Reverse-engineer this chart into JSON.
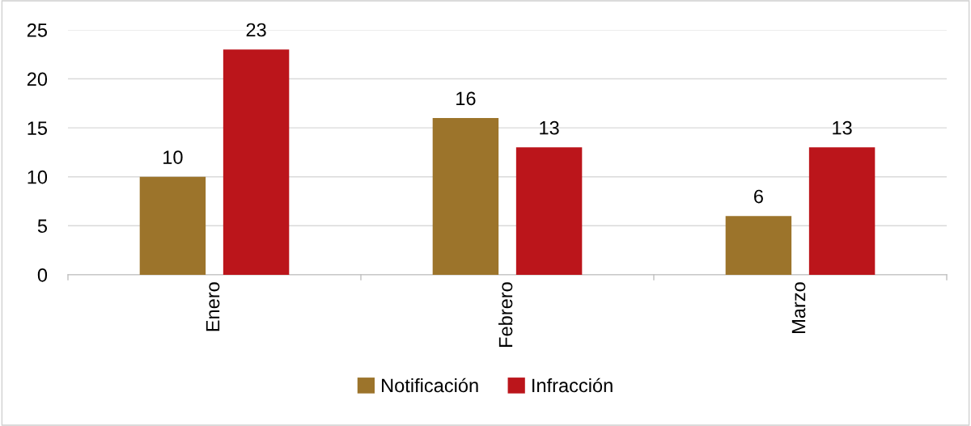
{
  "chart_data": {
    "type": "bar",
    "categories": [
      "Enero",
      "Febrero",
      "Marzo"
    ],
    "series": [
      {
        "name": "Notificación",
        "color": "#9c742b",
        "values": [
          10,
          16,
          6
        ]
      },
      {
        "name": "Infracción",
        "color": "#bb151b",
        "values": [
          23,
          13,
          13
        ]
      }
    ],
    "ylim": [
      0,
      25
    ],
    "yticks": [
      0,
      5,
      10,
      15,
      20,
      25
    ],
    "grid": "y",
    "legend": "bottom",
    "data_labels": true
  }
}
